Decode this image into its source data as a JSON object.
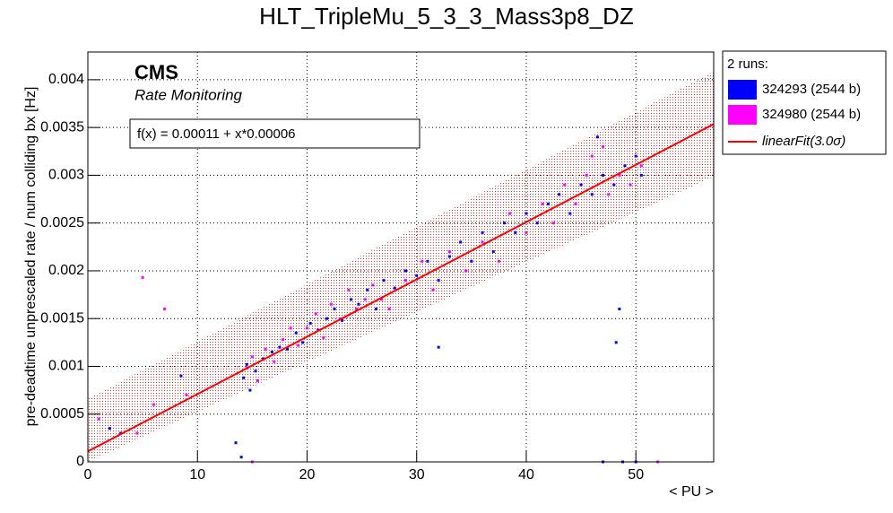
{
  "chart_data": {
    "type": "scatter",
    "title": "HLT_TripleMu_5_3_3_Mass3p8_DZ",
    "x_label": "< PU >",
    "y_label": "pre-deadtime unprescaled rate / num colliding bx [Hz]",
    "cms_label": "CMS",
    "cms_sublabel": "Rate Monitoring",
    "legend_title": "2 runs:",
    "legend_position": "outside-right",
    "grid": true,
    "xlim": [
      0,
      57.1
    ],
    "ylim": [
      0,
      0.00429
    ],
    "xticks": [
      0,
      10,
      20,
      30,
      40,
      50
    ],
    "yticks": [
      0,
      0.0005,
      0.001,
      0.0015,
      0.002,
      0.0025,
      0.003,
      0.0035,
      0.004
    ],
    "fit": {
      "name": "linearFit(3.0σ)",
      "label": "f(x) = 0.00011 + x*0.00006",
      "intercept": 0.00011,
      "slope": 6e-05,
      "band": 0.00055,
      "color": "#ff0000"
    },
    "series": [
      {
        "name": "324293 (2544 b)",
        "color": "#0000ff",
        "x": [
          14.2,
          14.5,
          14.8,
          15.3,
          16,
          16.8,
          17.5,
          18.2,
          19,
          19.6,
          20.3,
          21,
          21.8,
          22.5,
          23.2,
          24,
          24.7,
          25.5,
          26.3,
          27,
          28,
          29,
          30,
          31,
          32,
          33,
          34,
          35,
          36,
          37,
          38,
          39,
          40,
          41,
          42,
          43,
          44,
          45,
          46,
          47,
          48,
          49,
          50,
          50.5,
          32,
          48.5,
          48.2,
          47,
          48.8,
          50,
          2,
          3,
          14,
          13.5,
          8.5,
          46.5
        ],
        "values": [
          0.00088,
          0.00102,
          0.00075,
          0.00095,
          0.00108,
          0.00115,
          0.0012,
          0.00118,
          0.00135,
          0.00125,
          0.00145,
          0.00138,
          0.0015,
          0.0016,
          0.00148,
          0.0017,
          0.00165,
          0.0018,
          0.0016,
          0.0019,
          0.00182,
          0.002,
          0.00195,
          0.0021,
          0.0019,
          0.00215,
          0.0023,
          0.0021,
          0.0024,
          0.0022,
          0.0025,
          0.0024,
          0.0026,
          0.0025,
          0.0027,
          0.0028,
          0.0026,
          0.0029,
          0.0028,
          0.003,
          0.0029,
          0.0031,
          0.0032,
          0.003,
          0.0012,
          0.0016,
          0.00125,
          0,
          0,
          0,
          0.00035,
          0.0003,
          5e-05,
          0.0002,
          0.0009,
          0.0034
        ]
      },
      {
        "name": "324980 (2544 b)",
        "color": "#ff00ff",
        "x": [
          14.5,
          15,
          15.5,
          16.2,
          17,
          17.8,
          18.5,
          19.2,
          20,
          20.8,
          21.5,
          22.2,
          23,
          23.8,
          24.5,
          25.3,
          26,
          26.8,
          27.5,
          29,
          30.5,
          31.5,
          33,
          34.5,
          36,
          37.5,
          38.5,
          40,
          41.5,
          42.5,
          43.5,
          44.5,
          45.5,
          46,
          47,
          47.5,
          48.5,
          49.5,
          50.5,
          5,
          7,
          15,
          52,
          1,
          4.5,
          9,
          6
        ],
        "values": [
          0.00098,
          0.0011,
          0.00085,
          0.00118,
          0.00105,
          0.00128,
          0.0014,
          0.00122,
          0.0014,
          0.00155,
          0.0013,
          0.00165,
          0.0015,
          0.0018,
          0.0016,
          0.0017,
          0.00185,
          0.0017,
          0.0016,
          0.0019,
          0.0021,
          0.0018,
          0.0022,
          0.002,
          0.0023,
          0.0021,
          0.0026,
          0.0024,
          0.0027,
          0.0025,
          0.0029,
          0.0027,
          0.003,
          0.0032,
          0.0033,
          0.0028,
          0.003,
          0.0029,
          0.0031,
          0.00193,
          0.0016,
          0,
          0,
          0.00045,
          0.0003,
          0.0007,
          0.0006
        ]
      }
    ]
  }
}
